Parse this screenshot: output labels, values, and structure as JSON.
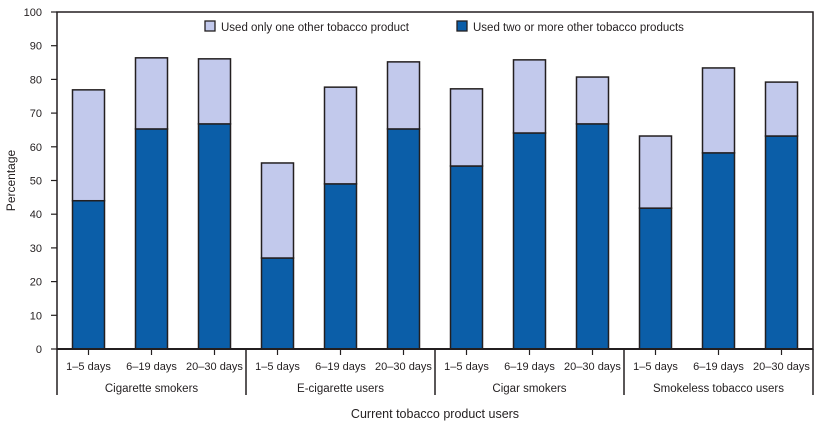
{
  "chart_data": {
    "type": "bar",
    "stacked": true,
    "xlabel": "Current tobacco product users",
    "ylabel": "Percentage",
    "ylim": [
      0,
      100
    ],
    "yticks": [
      0,
      10,
      20,
      30,
      40,
      50,
      60,
      70,
      80,
      90,
      100
    ],
    "legend_position": "top-center",
    "grid": false,
    "groups": [
      {
        "label": "Cigarette smokers",
        "categories": [
          "1–5 days",
          "6–19 days",
          "20–30 days"
        ]
      },
      {
        "label": "E-cigarette users",
        "categories": [
          "1–5 days",
          "6–19 days",
          "20–30 days"
        ]
      },
      {
        "label": "Cigar smokers",
        "categories": [
          "1–5 days",
          "6–19 days",
          "20–30 days"
        ]
      },
      {
        "label": "Smokeless tobacco users",
        "categories": [
          "1–5 days",
          "6–19 days",
          "20–30 days"
        ]
      }
    ],
    "series": [
      {
        "name": "Used two or more other tobacco products",
        "color": "#0b5ea8",
        "values": [
          44.0,
          65.3,
          66.8,
          27.0,
          49.0,
          65.3,
          54.3,
          64.1,
          66.8,
          41.8,
          58.2,
          63.2
        ]
      },
      {
        "name": "Used only one other tobacco product",
        "color": "#c2c9ec",
        "values": [
          32.9,
          21.1,
          19.3,
          28.2,
          28.7,
          19.9,
          22.9,
          21.7,
          13.9,
          21.4,
          25.2,
          16.0
        ]
      }
    ],
    "legend_order": [
      1,
      0
    ]
  }
}
